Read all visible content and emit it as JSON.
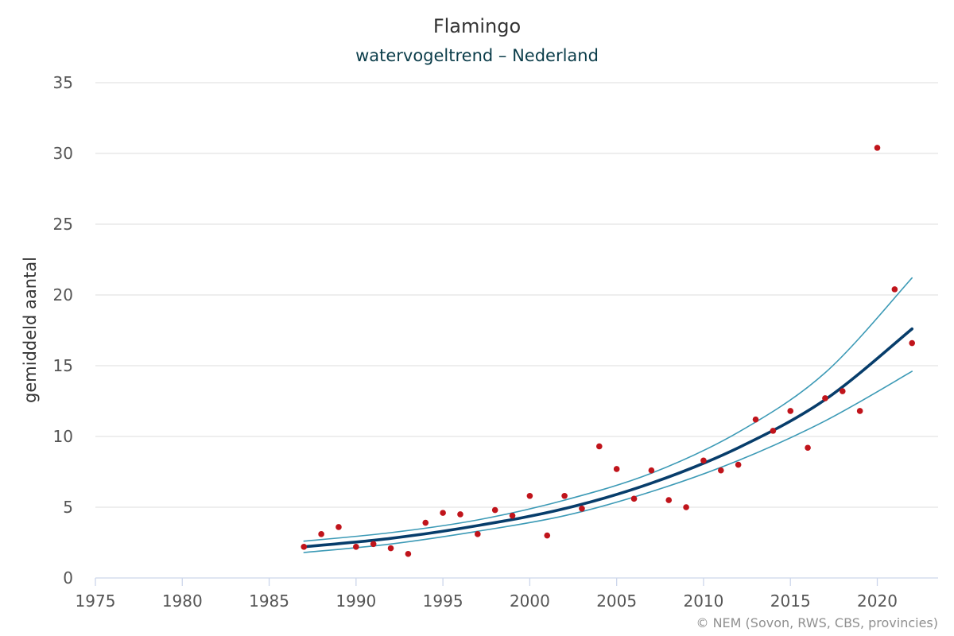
{
  "chart_data": {
    "type": "scatter",
    "title": "Flamingo",
    "subtitle": "watervogeltrend – Nederland",
    "xlabel": "",
    "ylabel": "gemiddeld aantal",
    "xlim": [
      1975,
      2023.5
    ],
    "ylim": [
      0,
      35
    ],
    "x_ticks": [
      1975,
      1980,
      1985,
      1990,
      1995,
      2000,
      2005,
      2010,
      2015,
      2020
    ],
    "y_ticks": [
      0,
      5,
      10,
      15,
      20,
      25,
      30,
      35
    ],
    "grid": true,
    "legend": "none",
    "credit": "© NEM (Sovon, RWS, CBS, provincies)",
    "colors": {
      "points": "#c0141b",
      "trend": "#073d6b",
      "ci": "#3c9ab6"
    },
    "series": [
      {
        "kind": "points",
        "x": [
          1987,
          1988,
          1989,
          1990,
          1991,
          1992,
          1993,
          1994,
          1995,
          1996,
          1997,
          1998,
          1999,
          2000,
          2001,
          2002,
          2003,
          2004,
          2005,
          2006,
          2007,
          2008,
          2009,
          2010,
          2011,
          2012,
          2013,
          2014,
          2015,
          2016,
          2017,
          2018,
          2019,
          2020,
          2021,
          2022
        ],
        "values": [
          2.2,
          3.1,
          3.6,
          2.2,
          2.4,
          2.1,
          1.7,
          3.9,
          4.6,
          4.5,
          3.1,
          4.8,
          4.4,
          5.8,
          3.0,
          5.8,
          4.9,
          9.3,
          7.7,
          5.6,
          7.6,
          5.5,
          5.0,
          8.3,
          7.6,
          8.0,
          11.2,
          10.4,
          11.8,
          9.2,
          12.7,
          13.2,
          11.8,
          30.4,
          20.4,
          16.6
        ]
      },
      {
        "kind": "trend",
        "x": [
          1987,
          1992,
          1997,
          2002,
          2007,
          2012,
          2017,
          2022
        ],
        "values": [
          2.2,
          2.8,
          3.7,
          4.9,
          6.7,
          9.2,
          12.6,
          17.6
        ]
      },
      {
        "kind": "upper",
        "x": [
          1987,
          1992,
          1997,
          2002,
          2007,
          2012,
          2017,
          2022
        ],
        "values": [
          2.6,
          3.2,
          4.1,
          5.5,
          7.4,
          10.3,
          14.5,
          21.2
        ]
      },
      {
        "kind": "lower",
        "x": [
          1987,
          1992,
          1997,
          2002,
          2007,
          2012,
          2017,
          2022
        ],
        "values": [
          1.8,
          2.4,
          3.3,
          4.4,
          6.1,
          8.3,
          11.1,
          14.6
        ]
      }
    ]
  }
}
